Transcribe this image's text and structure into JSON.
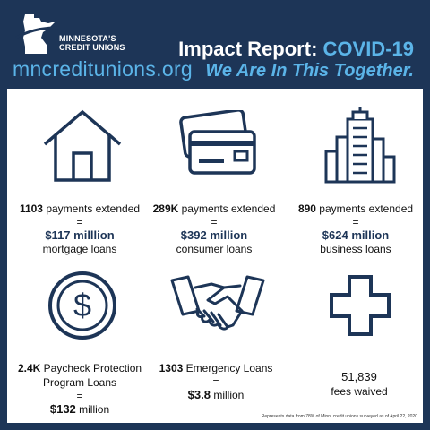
{
  "header": {
    "logo_line1": "MINNESOTA'S",
    "logo_line2": "CREDIT UNIONS",
    "website": "mncreditunions.org",
    "title_prefix": "Impact Report: ",
    "title_accent": "COVID-19",
    "subtitle": "We Are In This Together."
  },
  "stats": [
    {
      "icon": "house-icon",
      "count": "1103",
      "count_label": " payments extended",
      "eq": "=",
      "amount": "$117 milllion",
      "amount_label": "mortgage loans"
    },
    {
      "icon": "credit-cards-icon",
      "count": "289K",
      "count_label": " payments extended",
      "eq": "=",
      "amount": "$392 million",
      "amount_label": "consumer loans"
    },
    {
      "icon": "buildings-icon",
      "count": "890",
      "count_label": " payments extended",
      "eq": "=",
      "amount": "$624 million",
      "amount_label": "business loans"
    },
    {
      "icon": "dollar-coin-icon",
      "count": "2.4K",
      "count_label": " Paycheck Protection",
      "line2": "Program Loans",
      "eq": "=",
      "amount": "$132",
      "amount_suffix": " million"
    },
    {
      "icon": "handshake-icon",
      "count": "1303",
      "count_label": " Emergency Loans",
      "eq": "=",
      "amount": "$3.8",
      "amount_suffix": " million"
    },
    {
      "icon": "cross-icon",
      "count": "51,839",
      "line2": "fees waived"
    }
  ],
  "footnote": "Represents data from 78% of Minn. credit unions surveyed as of April 22, 2020",
  "colors": {
    "navy": "#1d3557",
    "light_blue": "#5bb4e8",
    "white": "#ffffff"
  }
}
